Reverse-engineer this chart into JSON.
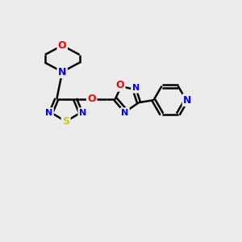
{
  "bg_color": "#ebebeb",
  "bond_color": "#000000",
  "bond_width": 1.8,
  "atom_colors": {
    "N": "#0000ff",
    "O": "#ff0000",
    "S": "#cccc00",
    "C": "#000000"
  },
  "fig_width": 3.0,
  "fig_height": 3.0,
  "dpi": 100
}
